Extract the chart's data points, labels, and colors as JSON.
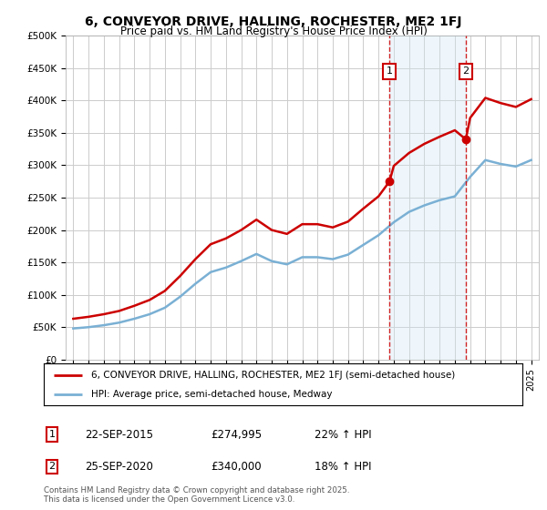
{
  "title": "6, CONVEYOR DRIVE, HALLING, ROCHESTER, ME2 1FJ",
  "subtitle": "Price paid vs. HM Land Registry's House Price Index (HPI)",
  "legend_line1": "6, CONVEYOR DRIVE, HALLING, ROCHESTER, ME2 1FJ (semi-detached house)",
  "legend_line2": "HPI: Average price, semi-detached house, Medway",
  "footnote1": "Contains HM Land Registry data © Crown copyright and database right 2025.",
  "footnote2": "This data is licensed under the Open Government Licence v3.0.",
  "sale1_date": "22-SEP-2015",
  "sale1_price": 274995,
  "sale1_pct": "22%",
  "sale2_date": "25-SEP-2020",
  "sale2_price": 340000,
  "sale2_pct": "18%",
  "sale1_year": 2015.72,
  "sale2_year": 2020.72,
  "ylim": [
    0,
    500000
  ],
  "xlim": [
    1994.5,
    2025.5
  ],
  "red_color": "#cc0000",
  "blue_color": "#7ab0d4",
  "shaded_color": "#d0e8f5",
  "background_color": "#ffffff",
  "grid_color": "#cccccc",
  "yticks": [
    0,
    50000,
    100000,
    150000,
    200000,
    250000,
    300000,
    350000,
    400000,
    450000,
    500000
  ]
}
